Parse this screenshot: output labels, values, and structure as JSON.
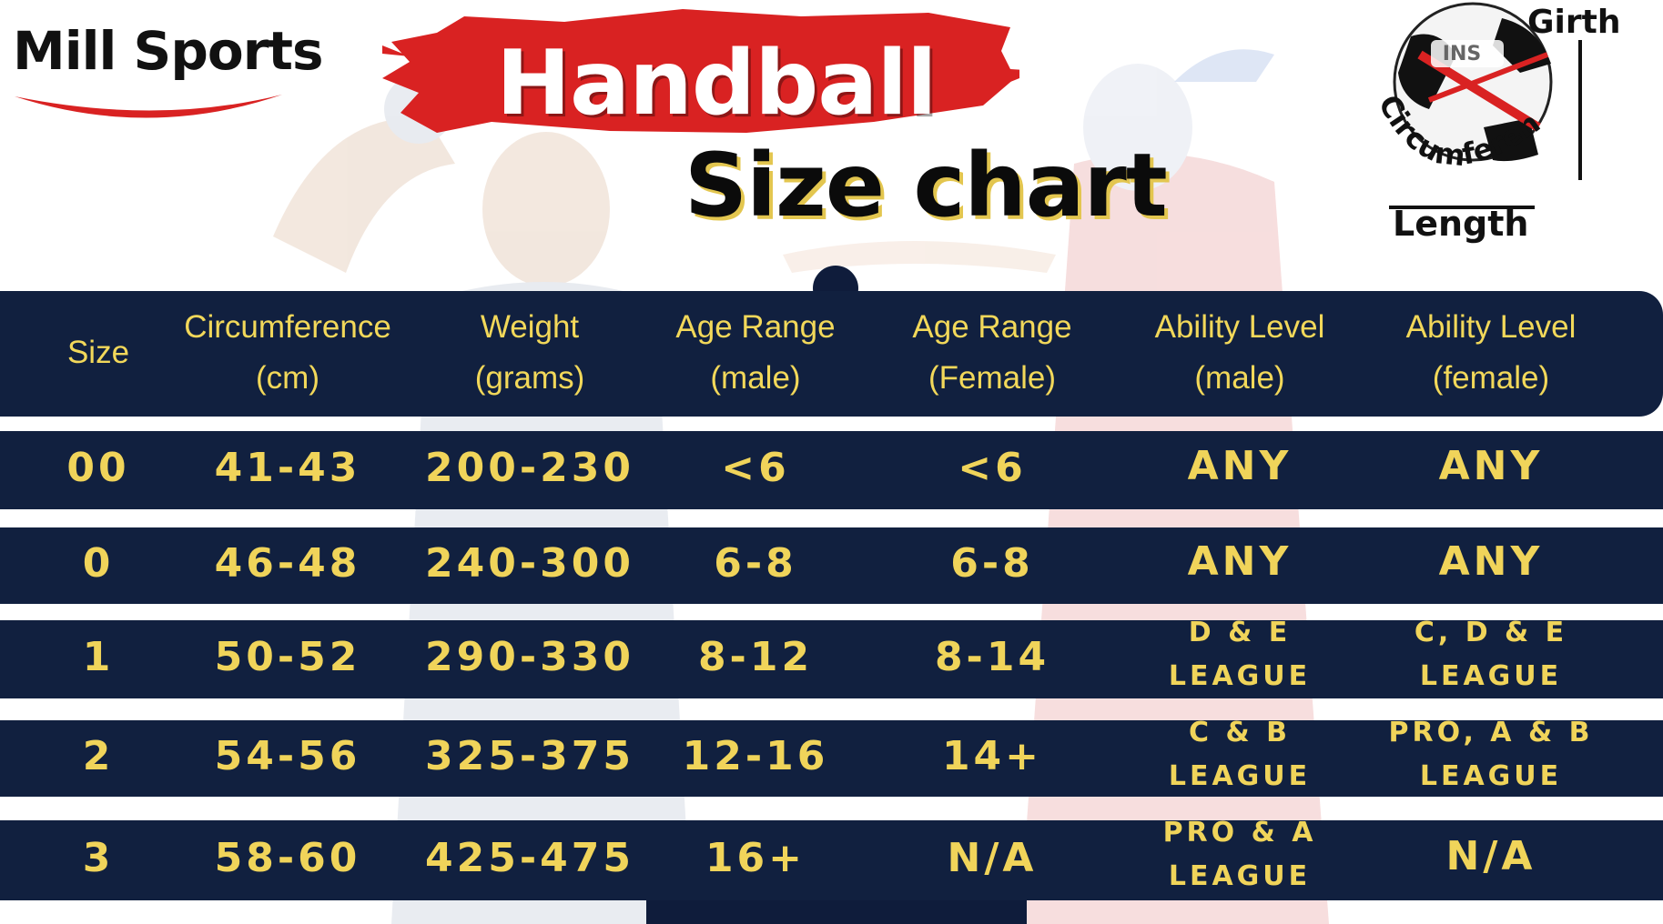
{
  "brand": {
    "logo_text": "Mill Sports"
  },
  "title": {
    "main": "Handball",
    "sub": "Size chart"
  },
  "diagram": {
    "girth_label": "Girth",
    "circumference_label": "Circumference",
    "length_label": "Length",
    "ball_brand": "INS"
  },
  "colors": {
    "navy": "#11203f",
    "gold": "#f0d45a",
    "brush_red": "#d92222"
  },
  "table": {
    "headers": [
      {
        "line1": "Size",
        "line2": ""
      },
      {
        "line1": "Circumference",
        "line2": "(cm)"
      },
      {
        "line1": "Weight",
        "line2": "(grams)"
      },
      {
        "line1": "Age Range",
        "line2": "(male)"
      },
      {
        "line1": "Age Range",
        "line2": "(Female)"
      },
      {
        "line1": "Ability Level",
        "line2": "(male)"
      },
      {
        "line1": "Ability Level",
        "line2": "(female)"
      }
    ],
    "rows": [
      {
        "size": "00",
        "circumference": "41-43",
        "weight": "200-230",
        "age_male": "<6",
        "age_female": "<6",
        "ability_male": {
          "line1": "ANY",
          "line2": ""
        },
        "ability_female": {
          "line1": "ANY",
          "line2": ""
        }
      },
      {
        "size": "0",
        "circumference": "46-48",
        "weight": "240-300",
        "age_male": "6-8",
        "age_female": "6-8",
        "ability_male": {
          "line1": "ANY",
          "line2": ""
        },
        "ability_female": {
          "line1": "ANY",
          "line2": ""
        }
      },
      {
        "size": "1",
        "circumference": "50-52",
        "weight": "290-330",
        "age_male": "8-12",
        "age_female": "8-14",
        "ability_male": {
          "line1": "D & E",
          "line2": "LEAGUE"
        },
        "ability_female": {
          "line1": "C, D & E",
          "line2": "LEAGUE"
        }
      },
      {
        "size": "2",
        "circumference": "54-56",
        "weight": "325-375",
        "age_male": "12-16",
        "age_female": "14+",
        "ability_male": {
          "line1": "C & B",
          "line2": "LEAGUE"
        },
        "ability_female": {
          "line1": "PRO, A & B",
          "line2": "LEAGUE"
        }
      },
      {
        "size": "3",
        "circumference": "58-60",
        "weight": "425-475",
        "age_male": "16+",
        "age_female": "N/A",
        "ability_male": {
          "line1": "PRO & A",
          "line2": "LEAGUE"
        },
        "ability_female": {
          "line1": "N/A",
          "line2": ""
        }
      }
    ]
  }
}
